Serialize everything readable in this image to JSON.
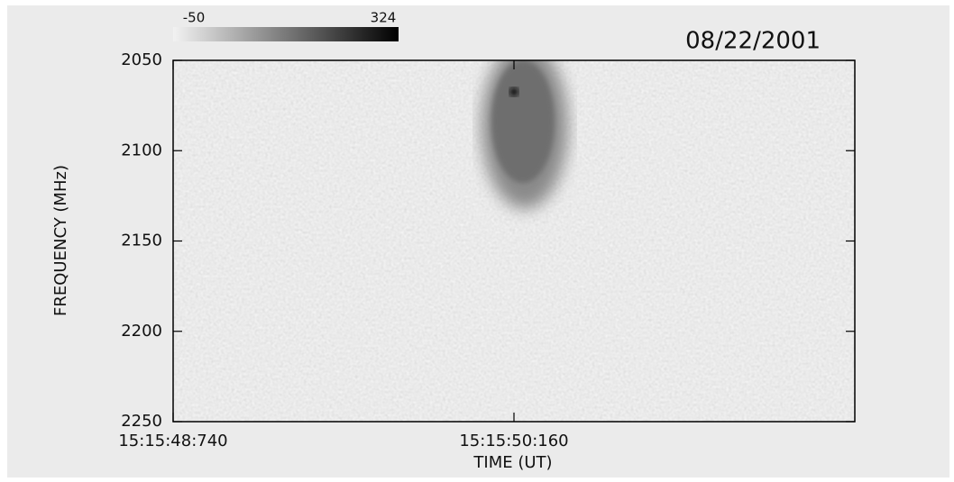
{
  "chart_data": {
    "type": "spectrogram",
    "date": "08/22/2001",
    "xlabel": "TIME (UT)",
    "ylabel": "FREQUENCY (MHz)",
    "xlim": [
      54948.74,
      54951.58
    ],
    "xticks": [
      {
        "value": 54948.74,
        "label": "15:15:48:740"
      },
      {
        "value": 54950.16,
        "label": "15:15:50:160"
      }
    ],
    "ylim": [
      2250,
      2050
    ],
    "yticks": [
      2050,
      2100,
      2150,
      2200,
      2250
    ],
    "colorbar": {
      "range": [
        -50,
        324
      ],
      "colors": [
        "#f2f2f2",
        "#000000"
      ]
    }
  }
}
